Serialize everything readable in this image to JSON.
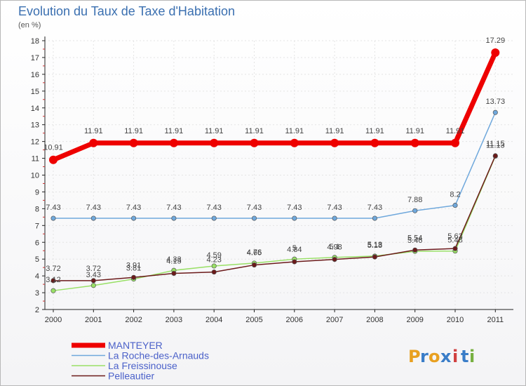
{
  "header": {
    "title": "Evolution du Taux de Taxe d'Habitation",
    "subtitle": "(en %)"
  },
  "brand": {
    "letters": [
      "P",
      "r",
      "o",
      "x",
      "i",
      "t",
      "i"
    ]
  },
  "chart_data": {
    "type": "line",
    "title": "Evolution du Taux de Taxe d'Habitation",
    "ylabel": "(en %)",
    "xlabel": "",
    "ylim": [
      2,
      18
    ],
    "yticks": [
      2,
      3,
      4,
      5,
      6,
      7,
      8,
      9,
      10,
      11,
      12,
      13,
      14,
      15,
      16,
      17,
      18
    ],
    "categories": [
      "2000",
      "2001",
      "2002",
      "2003",
      "2004",
      "2005",
      "2006",
      "2007",
      "2008",
      "2009",
      "2010",
      "2011"
    ],
    "series": [
      {
        "name": "MANTEYER",
        "color": "#ee0000",
        "values": [
          10.91,
          11.91,
          11.91,
          11.91,
          11.91,
          11.91,
          11.91,
          11.91,
          11.91,
          11.91,
          11.91,
          17.29
        ],
        "labels": [
          "10.91",
          "11.91",
          "11.91",
          "11.91",
          "11.91",
          "11.91",
          "11.91",
          "11.91",
          "11.91",
          "11.91",
          "11.91",
          "17.29"
        ]
      },
      {
        "name": "La Roche-des-Arnauds",
        "color": "#6fa8dc",
        "values": [
          7.43,
          7.43,
          7.43,
          7.43,
          7.43,
          7.43,
          7.43,
          7.43,
          7.43,
          7.88,
          8.2,
          13.73
        ],
        "labels": [
          "7.43",
          "7.43",
          "7.43",
          "7.43",
          "7.43",
          "7.43",
          "7.43",
          "7.43",
          "7.43",
          "7.88",
          "8.2",
          "13.73"
        ]
      },
      {
        "name": "La Freissinouse",
        "color": "#99e066",
        "values": [
          3.12,
          3.43,
          3.81,
          4.33,
          4.59,
          4.76,
          5.0,
          5.1,
          5.18,
          5.46,
          5.48,
          11.13
        ],
        "labels": [
          "3.12",
          "3.43",
          "3.81",
          "4.33",
          "4.59",
          "4.76",
          "5",
          "5.1",
          "5.18",
          "5.46",
          "5.48",
          "11.13"
        ]
      },
      {
        "name": "Pelleautier",
        "color": "#6b1a1a",
        "values": [
          3.72,
          3.72,
          3.91,
          4.15,
          4.23,
          4.65,
          4.84,
          4.98,
          5.13,
          5.54,
          5.63,
          11.15
        ],
        "labels": [
          "3.72",
          "3.72",
          "3.91",
          "4.15",
          "4.23",
          "4.65",
          "4.84",
          "4.98",
          "5.13",
          "5.54",
          "5.63",
          "11.15"
        ]
      }
    ]
  }
}
